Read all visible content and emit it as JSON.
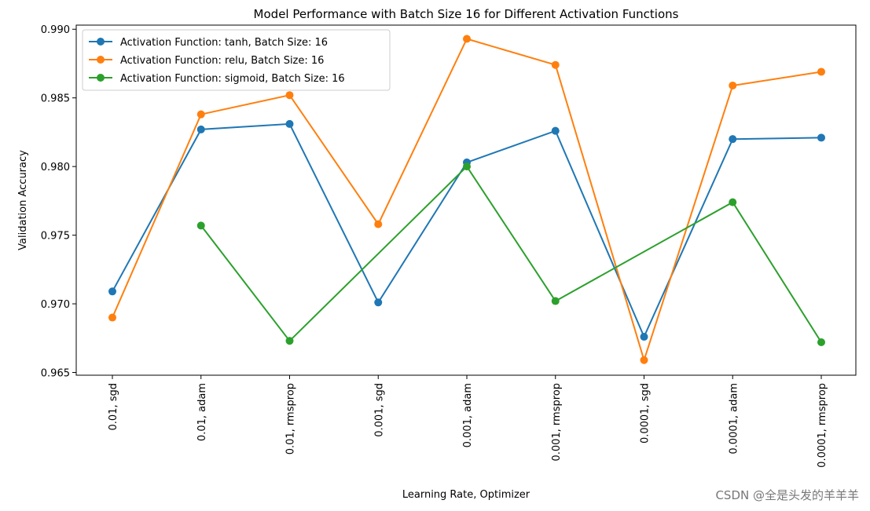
{
  "chart_data": {
    "type": "line",
    "title": "Model Performance with Batch Size 16 for Different Activation Functions",
    "xlabel": "Learning Rate, Optimizer",
    "ylabel": "Validation Accuracy",
    "categories": [
      "0.01, sgd",
      "0.01, adam",
      "0.01, rmsprop",
      "0.001, sgd",
      "0.001, adam",
      "0.001, rmsprop",
      "0.0001, sgd",
      "0.0001, adam",
      "0.0001, rmsprop"
    ],
    "ylim": [
      0.9648,
      0.9903
    ],
    "yticks": [
      "0.965",
      "0.970",
      "0.975",
      "0.980",
      "0.985",
      "0.990"
    ],
    "yticks_values": [
      0.965,
      0.97,
      0.975,
      0.98,
      0.985,
      0.99
    ],
    "legend_position": "top-left",
    "series": [
      {
        "name": "Activation Function: tanh, Batch Size: 16",
        "color": "#1f77b4",
        "values": [
          0.9709,
          0.9827,
          0.9831,
          0.9701,
          0.9803,
          0.9826,
          0.9676,
          0.982,
          0.9821
        ]
      },
      {
        "name": "Activation Function: relu, Batch Size: 16",
        "color": "#ff7f0e",
        "values": [
          0.969,
          0.9838,
          0.9852,
          0.9758,
          0.9893,
          0.9874,
          0.9659,
          0.9859,
          0.9869
        ]
      },
      {
        "name": "Activation Function: sigmoid, Batch Size: 16",
        "color": "#2ca02c",
        "values": [
          null,
          0.9757,
          0.9673,
          null,
          0.98,
          0.9702,
          null,
          0.9774,
          0.9672
        ]
      }
    ]
  },
  "watermark": "CSDN @全是头发的羊羊羊"
}
